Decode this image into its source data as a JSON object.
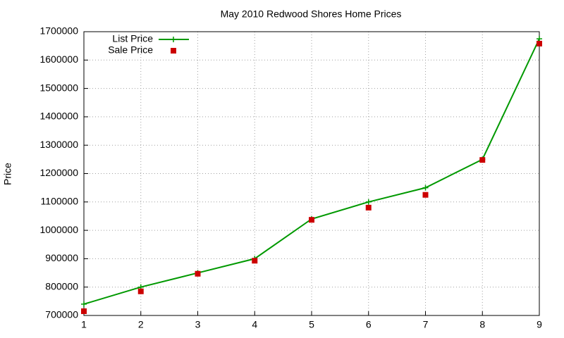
{
  "chart_data": {
    "type": "line",
    "title": "May 2010 Redwood Shores Home Prices",
    "y_label": "Price",
    "x": [
      1,
      2,
      3,
      4,
      5,
      6,
      7,
      8,
      9
    ],
    "series": [
      {
        "name": "List Price",
        "color": "#009900",
        "marker": "plus",
        "line": true,
        "values": [
          740000,
          800000,
          850000,
          900000,
          1040000,
          1100000,
          1150000,
          1250000,
          1675000
        ]
      },
      {
        "name": "Sale Price",
        "color": "#cc0000",
        "marker": "square",
        "line": false,
        "values": [
          715000,
          785000,
          847000,
          893000,
          1037000,
          1080000,
          1125000,
          1248000,
          1658000
        ]
      }
    ],
    "xlim": [
      1,
      9
    ],
    "xticks": [
      1,
      2,
      3,
      4,
      5,
      6,
      7,
      8,
      9
    ],
    "ylim": [
      700000,
      1700000
    ],
    "yticks": [
      700000,
      800000,
      900000,
      1000000,
      1100000,
      1200000,
      1300000,
      1400000,
      1500000,
      1600000,
      1700000
    ],
    "grid": true,
    "legend": "top-left"
  }
}
